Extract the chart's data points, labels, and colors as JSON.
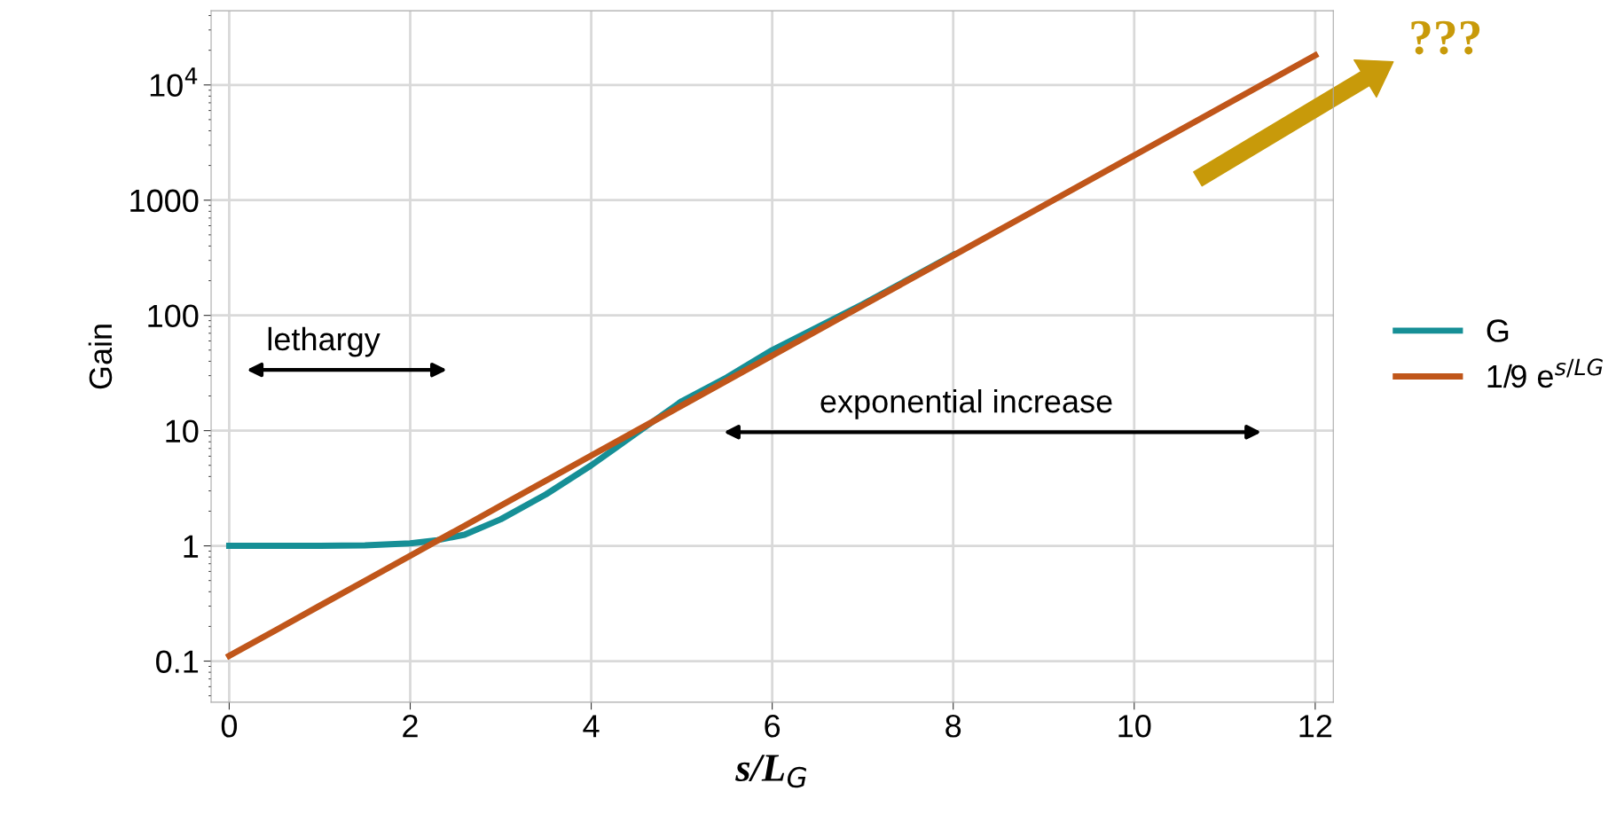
{
  "chart_data": {
    "type": "line",
    "xlabel": "s/L$_{G}$",
    "ylabel": "Gain",
    "x": [
      0,
      0.5,
      1,
      1.5,
      2,
      2.3,
      2.6,
      3,
      3.5,
      4,
      4.5,
      5,
      5.5,
      6,
      7,
      8,
      9,
      10,
      11,
      12
    ],
    "series": [
      {
        "name": "G",
        "color": "#168f96",
        "values": [
          1.0,
          1.0,
          1.0,
          1.01,
          1.05,
          1.12,
          1.25,
          1.7,
          2.8,
          5.0,
          9.5,
          18,
          29,
          50,
          125,
          335,
          null,
          null,
          null,
          null
        ]
      },
      {
        "name": "1/9 e$^{s/LG}$",
        "color": "#c0561a",
        "values": [
          0.111,
          0.183,
          0.302,
          0.498,
          0.821,
          1.11,
          1.49,
          2.23,
          3.68,
          6.07,
          10.0,
          16.5,
          27.2,
          44.8,
          122,
          331,
          900,
          2447,
          6652,
          18084
        ]
      }
    ],
    "xlim": [
      -0.2,
      12.2
    ],
    "xticks": [
      0,
      2,
      4,
      6,
      8,
      10,
      12
    ],
    "ylim": [
      0.044,
      44000
    ],
    "yticks": [
      0.1,
      1,
      10,
      100,
      1000,
      {
        "value": 10000,
        "label": "10$^{4}$"
      }
    ],
    "log": "y",
    "grid": true,
    "legend": "right",
    "marker": "none",
    "line_style": "solid",
    "annotations": [
      "lethargy",
      "exponential increase",
      "???"
    ]
  }
}
